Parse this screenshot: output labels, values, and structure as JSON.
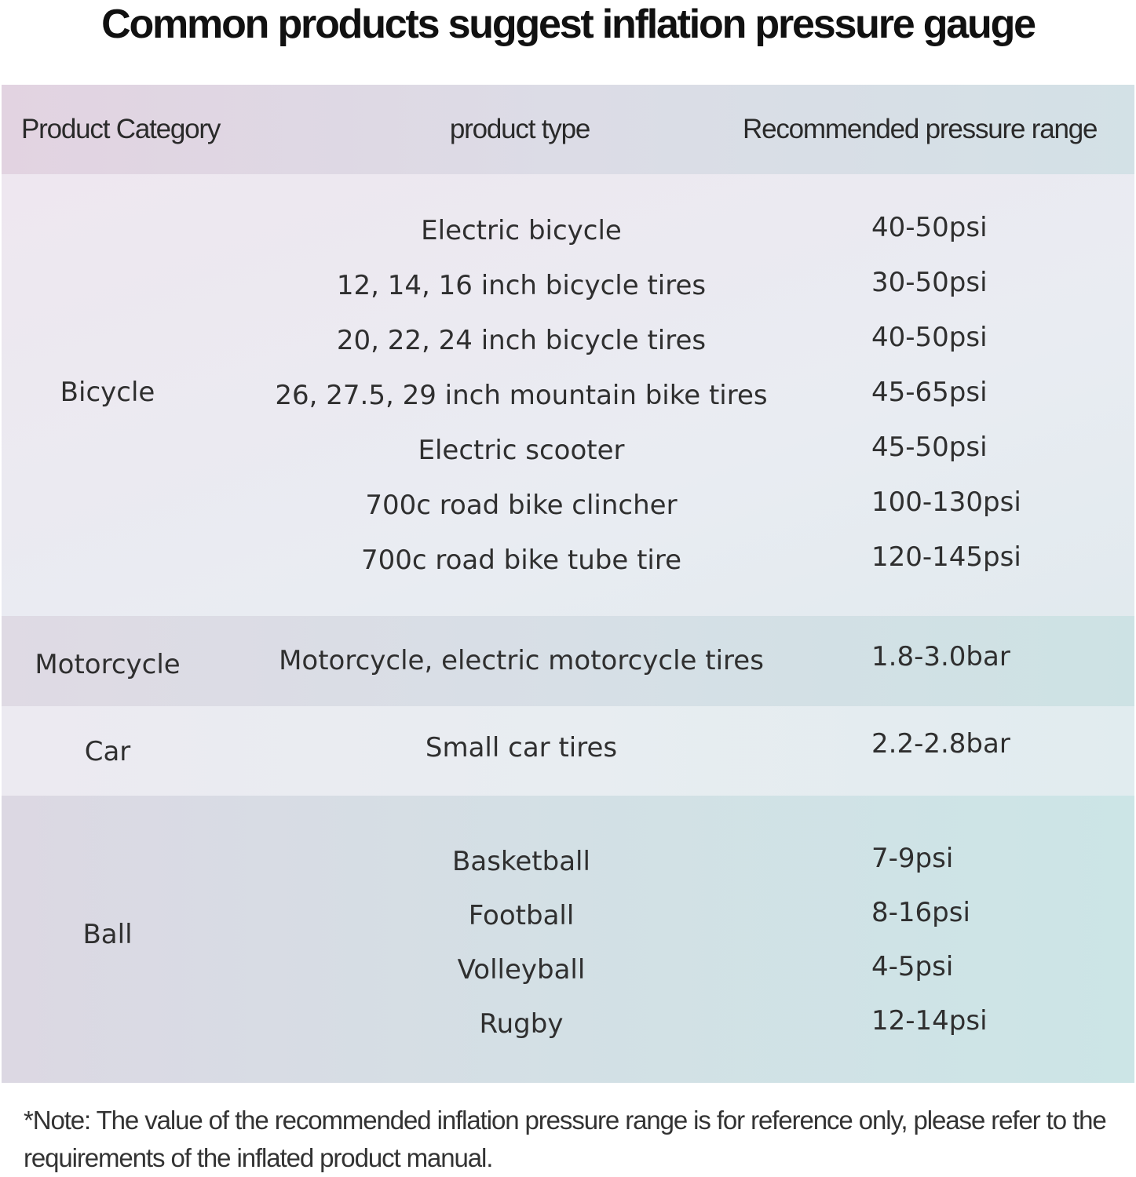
{
  "title": "Common products suggest inflation pressure gauge",
  "table": {
    "headers": {
      "category": "Product Category",
      "type": "product type",
      "range": "Recommended pressure range"
    },
    "groups": [
      {
        "category": "Bicycle",
        "rows": [
          {
            "type": "Electric bicycle",
            "range": "40-50psi"
          },
          {
            "type": "12, 14, 16 inch bicycle tires",
            "range": "30-50psi"
          },
          {
            "type": "20, 22, 24 inch bicycle tires",
            "range": "40-50psi"
          },
          {
            "type": "26, 27.5, 29 inch mountain bike tires",
            "range": "45-65psi"
          },
          {
            "type": "Electric scooter",
            "range": "45-50psi"
          },
          {
            "type": "700c road bike clincher",
            "range": "100-130psi"
          },
          {
            "type": "700c road bike tube tire",
            "range": "120-145psi"
          }
        ]
      },
      {
        "category": "Motorcycle",
        "rows": [
          {
            "type": "Motorcycle, electric motorcycle tires",
            "range": "1.8-3.0bar"
          }
        ]
      },
      {
        "category": "Car",
        "rows": [
          {
            "type": "Small car tires",
            "range": "2.2-2.8bar"
          }
        ]
      },
      {
        "category": "Ball",
        "rows": [
          {
            "type": "Basketball",
            "range": "7-9psi"
          },
          {
            "type": "Football",
            "range": "8-16psi"
          },
          {
            "type": "Volleyball",
            "range": "4-5psi"
          },
          {
            "type": "Rugby",
            "range": "12-14psi"
          }
        ]
      }
    ]
  },
  "note": "*Note: The value of the recommended inflation pressure range is for reference only, please refer to the requirements of the inflated product manual."
}
